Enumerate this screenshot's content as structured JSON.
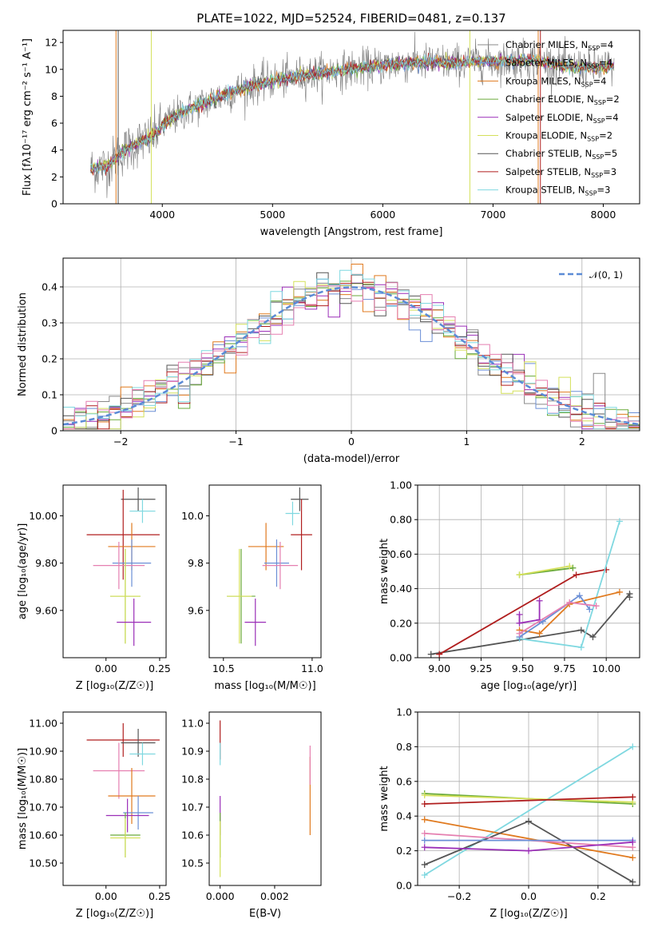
{
  "figure": {
    "title": "PLATE=1022, MJD=52524, FIBERID=0481, z=0.137"
  },
  "colors": {
    "chabrier_miles": "#888888",
    "salpeter_miles": "#6b8fd6",
    "kroupa_miles": "#e07a1f",
    "chabrier_elodie": "#6aaa3a",
    "salpeter_elodie": "#9b2fb8",
    "kroupa_elodie": "#d4e05a",
    "chabrier_stelib": "#555555",
    "salpeter_stelib": "#b01e1e",
    "kroupa_stelib": "#7fd8e0",
    "pink": "#e57fb0",
    "normal_curve": "#5b8bd6",
    "grid": "#b0b0b0"
  },
  "chart_data": [
    {
      "type": "line",
      "panel": "spectrum",
      "title": "PLATE=1022, MJD=52524, FIBERID=0481, z=0.137",
      "xlabel": "wavelength [Angstrom, rest frame]",
      "ylabel": "Flux [fλ10⁻¹⁷ erg cm⁻² s⁻¹ A⁻¹]",
      "xlim": [
        3100,
        8330
      ],
      "ylim": [
        0,
        12.9
      ],
      "xticks": [
        4000,
        5000,
        6000,
        7000,
        8000
      ],
      "yticks": [
        0,
        2,
        4,
        6,
        8,
        10,
        12
      ],
      "grid": false,
      "legend_position": "right",
      "legend": [
        "Chabrier MILES, N_SSP=4",
        "Salpeter MILES, N_SSP=4",
        "Kroupa MILES, N_SSP=4",
        "Chabrier ELODIE, N_SSP=2",
        "Salpeter ELODIE, N_SSP=4",
        "Kroupa ELODIE, N_SSP=2",
        "Chabrier STELIB, N_SSP=5",
        "Salpeter STELIB, N_SSP=3",
        "Kroupa STELIB, N_SSP=3"
      ],
      "spectrum_x": [
        3350,
        3500,
        3600,
        3700,
        3800,
        3900,
        4000,
        4100,
        4200,
        4300,
        4500,
        4700,
        4900,
        5100,
        5300,
        5500,
        5700,
        5900,
        6100,
        6300,
        6500,
        6700,
        6900,
        7100,
        7300,
        7500,
        7700,
        7900,
        8100
      ],
      "spectrum_y": [
        2.6,
        2.8,
        3.6,
        4.2,
        4.6,
        4.9,
        5.8,
        6.4,
        6.9,
        7.2,
        7.9,
        8.5,
        9.0,
        9.3,
        9.6,
        9.8,
        10.0,
        10.2,
        10.4,
        10.5,
        10.5,
        10.5,
        10.6,
        10.6,
        10.7,
        10.5,
        10.2,
        10.1,
        10.2
      ]
    },
    {
      "type": "line",
      "panel": "residual_histogram",
      "xlabel": "(data-model)/error",
      "ylabel": "Normed distribution",
      "xlim": [
        -2.5,
        2.5
      ],
      "ylim": [
        0,
        0.48
      ],
      "xticks": [
        -2,
        -1,
        0,
        1,
        2
      ],
      "yticks": [
        0.0,
        0.1,
        0.2,
        0.3,
        0.4
      ],
      "grid": true,
      "legend_position": "top-right",
      "legend": [
        "𝒩(0, 1)"
      ],
      "bin_width": 0.1,
      "bin_start": -2.5
    },
    {
      "type": "scatter",
      "panel": "age_vs_Z",
      "xlabel": "Z [log₁₀(Z/Z☉)]",
      "ylabel": "age  [log₁₀(age/yr)]",
      "xlim": [
        -0.2,
        0.28
      ],
      "ylim": [
        9.4,
        10.13
      ],
      "xticks": [
        0.0,
        0.25
      ],
      "yticks": [
        9.6,
        9.8,
        10.0
      ],
      "points": [
        {
          "series": "Chabrier STELIB",
          "x": 0.15,
          "xerr": 0.08,
          "y": 10.07,
          "yerr": 0.05
        },
        {
          "series": "Kroupa STELIB",
          "x": 0.17,
          "xerr": 0.06,
          "y": 10.02,
          "yerr": 0.05
        },
        {
          "series": "Salpeter STELIB",
          "x": 0.08,
          "xerr": 0.17,
          "y": 9.92,
          "yerr": 0.19
        },
        {
          "series": "Kroupa MILES",
          "x": 0.12,
          "xerr": 0.11,
          "y": 9.87,
          "yerr": 0.1
        },
        {
          "series": "Salpeter MILES",
          "x": 0.12,
          "xerr": 0.09,
          "y": 9.8,
          "yerr": 0.1
        },
        {
          "series": "pink",
          "x": 0.06,
          "xerr": 0.12,
          "y": 9.79,
          "yerr": 0.1
        },
        {
          "series": "Chabrier ELODIE",
          "x": 0.09,
          "xerr": 0.07,
          "y": 9.66,
          "yerr": 0.2
        },
        {
          "series": "Kroupa ELODIE",
          "x": 0.09,
          "xerr": 0.07,
          "y": 9.66,
          "yerr": 0.2
        },
        {
          "series": "Salpeter ELODIE",
          "x": 0.13,
          "xerr": 0.08,
          "y": 9.55,
          "yerr": 0.1
        }
      ]
    },
    {
      "type": "scatter",
      "panel": "age_vs_mass",
      "xlabel": "mass [log₁₀(M/M☉)]",
      "ylabel": "",
      "xlim": [
        10.42,
        11.05
      ],
      "ylim": [
        9.4,
        10.13
      ],
      "xticks": [
        10.5,
        11.0
      ],
      "yticks": [
        9.6,
        9.8,
        10.0
      ],
      "points": [
        {
          "series": "Chabrier STELIB",
          "x": 10.93,
          "xerr": 0.05,
          "y": 10.07,
          "yerr": 0.05
        },
        {
          "series": "Kroupa STELIB",
          "x": 10.89,
          "xerr": 0.04,
          "y": 10.01,
          "yerr": 0.05
        },
        {
          "series": "Salpeter STELIB",
          "x": 10.94,
          "xerr": 0.06,
          "y": 9.92,
          "yerr": 0.15
        },
        {
          "series": "Kroupa MILES",
          "x": 10.74,
          "xerr": 0.1,
          "y": 9.87,
          "yerr": 0.1
        },
        {
          "series": "Salpeter MILES",
          "x": 10.8,
          "xerr": 0.07,
          "y": 9.8,
          "yerr": 0.1
        },
        {
          "series": "pink",
          "x": 10.82,
          "xerr": 0.1,
          "y": 9.79,
          "yerr": 0.1
        },
        {
          "series": "Chabrier ELODIE",
          "x": 10.6,
          "xerr": 0.08,
          "y": 9.66,
          "yerr": 0.2
        },
        {
          "series": "Kroupa ELODIE",
          "x": 10.59,
          "xerr": 0.07,
          "y": 9.66,
          "yerr": 0.2
        },
        {
          "series": "Salpeter ELODIE",
          "x": 10.68,
          "xerr": 0.06,
          "y": 9.55,
          "yerr": 0.1
        }
      ]
    },
    {
      "type": "line",
      "panel": "weight_vs_age",
      "xlabel": "age  [log₁₀(age/yr)]",
      "ylabel": "mass weight",
      "xlim": [
        8.87,
        10.2
      ],
      "ylim": [
        0,
        1.0
      ],
      "xticks": [
        9.0,
        9.25,
        9.5,
        9.75,
        10.0
      ],
      "yticks": [
        0.0,
        0.2,
        0.4,
        0.6,
        0.8,
        1.0
      ],
      "grid": true,
      "series": [
        {
          "series": "Chabrier STELIB",
          "x": [
            8.95,
            9.85,
            9.92,
            10.14,
            10.14
          ],
          "y": [
            0.02,
            0.16,
            0.12,
            0.37,
            0.35
          ]
        },
        {
          "series": "Salpeter STELIB",
          "x": [
            9.0,
            9.82,
            10.0
          ],
          "y": [
            0.02,
            0.48,
            0.51
          ]
        },
        {
          "series": "Kroupa STELIB",
          "x": [
            9.48,
            9.85,
            10.08
          ],
          "y": [
            0.11,
            0.06,
            0.79
          ]
        },
        {
          "series": "Chabrier ELODIE",
          "x": [
            9.48,
            9.8
          ],
          "y": [
            0.48,
            0.52
          ]
        },
        {
          "series": "Kroupa ELODIE",
          "x": [
            9.48,
            9.78
          ],
          "y": [
            0.48,
            0.53
          ]
        },
        {
          "series": "Kroupa MILES",
          "x": [
            9.48,
            9.6,
            9.78,
            10.08
          ],
          "y": [
            0.16,
            0.14,
            0.31,
            0.38
          ]
        },
        {
          "series": "Salpeter MILES",
          "x": [
            9.48,
            9.62,
            9.84,
            9.9
          ],
          "y": [
            0.12,
            0.21,
            0.36,
            0.28
          ]
        },
        {
          "series": "Salpeter ELODIE",
          "x": [
            9.48,
            9.48,
            9.6,
            9.6
          ],
          "y": [
            0.25,
            0.2,
            0.22,
            0.33
          ]
        },
        {
          "series": "pink",
          "x": [
            9.48,
            9.78,
            9.94
          ],
          "y": [
            0.14,
            0.32,
            0.3
          ]
        }
      ]
    },
    {
      "type": "scatter",
      "panel": "mass_vs_Z",
      "xlabel": "Z [log₁₀(Z/Z☉)]",
      "ylabel": "mass [log₁₀(M/M☉)]",
      "xlim": [
        -0.2,
        0.28
      ],
      "ylim": [
        10.42,
        11.04
      ],
      "xticks": [
        0.0,
        0.25
      ],
      "yticks": [
        10.5,
        10.6,
        10.7,
        10.8,
        10.9,
        11.0
      ],
      "points": [
        {
          "series": "Salpeter STELIB",
          "x": 0.08,
          "xerr": 0.17,
          "y": 10.94,
          "yerr": 0.06
        },
        {
          "series": "Chabrier STELIB",
          "x": 0.15,
          "xerr": 0.08,
          "y": 10.93,
          "yerr": 0.05
        },
        {
          "series": "Kroupa STELIB",
          "x": 0.17,
          "xerr": 0.06,
          "y": 10.89,
          "yerr": 0.04
        },
        {
          "series": "pink",
          "x": 0.06,
          "xerr": 0.12,
          "y": 10.83,
          "yerr": 0.1
        },
        {
          "series": "Kroupa MILES",
          "x": 0.12,
          "xerr": 0.11,
          "y": 10.74,
          "yerr": 0.1
        },
        {
          "series": "Salpeter MILES",
          "x": 0.15,
          "xerr": 0.07,
          "y": 10.68,
          "yerr": 0.06
        },
        {
          "series": "Salpeter ELODIE",
          "x": 0.1,
          "xerr": 0.1,
          "y": 10.67,
          "yerr": 0.06
        },
        {
          "series": "Chabrier ELODIE",
          "x": 0.09,
          "xerr": 0.07,
          "y": 10.6,
          "yerr": 0.08
        },
        {
          "series": "Kroupa ELODIE",
          "x": 0.09,
          "xerr": 0.07,
          "y": 10.59,
          "yerr": 0.07
        }
      ]
    },
    {
      "type": "scatter",
      "panel": "mass_vs_ebv",
      "xlabel": "E(B-V)",
      "ylabel": "",
      "xlim": [
        -0.0004,
        0.0037
      ],
      "ylim": [
        10.42,
        11.04
      ],
      "xticks": [
        0.0,
        0.002
      ],
      "yticks": [
        10.5,
        10.6,
        10.7,
        10.8,
        10.9,
        11.0
      ],
      "points": [
        {
          "series": "Salpeter STELIB",
          "x": 0.0,
          "xerr": 0.0,
          "y": 10.94,
          "yerr": 0.07
        },
        {
          "series": "Kroupa STELIB",
          "x": 0.0,
          "xerr": 0.0,
          "y": 10.89,
          "yerr": 0.04
        },
        {
          "series": "Salpeter ELODIE",
          "x": 0.0,
          "xerr": 0.0,
          "y": 10.67,
          "yerr": 0.07
        },
        {
          "series": "Chabrier ELODIE",
          "x": 0.0,
          "xerr": 0.0,
          "y": 10.6,
          "yerr": 0.08
        },
        {
          "series": "Kroupa ELODIE",
          "x": 0.0,
          "xerr": 0.0,
          "y": 10.55,
          "yerr": 0.1
        },
        {
          "series": "Kroupa MILES",
          "x": 0.0033,
          "xerr": 0.0,
          "y": 10.74,
          "yerr": 0.14
        },
        {
          "series": "pink",
          "x": 0.0033,
          "xerr": 0.0,
          "y": 10.85,
          "yerr": 0.07
        }
      ]
    },
    {
      "type": "line",
      "panel": "weight_vs_Z",
      "xlabel": "Z [log₁₀(Z/Z☉)]",
      "ylabel": "mass weight",
      "xlim": [
        -0.32,
        0.32
      ],
      "ylim": [
        0,
        1.0
      ],
      "xticks": [
        -0.2,
        0.0,
        0.2
      ],
      "yticks": [
        0.0,
        0.2,
        0.4,
        0.6,
        0.8,
        1.0
      ],
      "grid": true,
      "series": [
        {
          "series": "Kroupa STELIB",
          "x": [
            -0.3,
            0.3
          ],
          "y": [
            0.06,
            0.8
          ]
        },
        {
          "series": "Chabrier ELODIE",
          "x": [
            -0.3,
            0.3
          ],
          "y": [
            0.53,
            0.47
          ]
        },
        {
          "series": "Kroupa ELODIE",
          "x": [
            -0.3,
            0.3
          ],
          "y": [
            0.52,
            0.48
          ]
        },
        {
          "series": "Salpeter STELIB",
          "x": [
            -0.3,
            0.3
          ],
          "y": [
            0.47,
            0.51
          ]
        },
        {
          "series": "Kroupa MILES",
          "x": [
            -0.3,
            0.3
          ],
          "y": [
            0.38,
            0.16
          ]
        },
        {
          "series": "Chabrier STELIB",
          "x": [
            -0.3,
            0.0,
            0.3
          ],
          "y": [
            0.12,
            0.37,
            0.02
          ]
        },
        {
          "series": "pink",
          "x": [
            -0.3,
            0.3
          ],
          "y": [
            0.3,
            0.22
          ]
        },
        {
          "series": "Salpeter MILES",
          "x": [
            -0.3,
            0.3
          ],
          "y": [
            0.26,
            0.26
          ]
        },
        {
          "series": "Salpeter ELODIE",
          "x": [
            -0.3,
            0.0,
            0.3
          ],
          "y": [
            0.22,
            0.2,
            0.25
          ]
        }
      ]
    }
  ]
}
